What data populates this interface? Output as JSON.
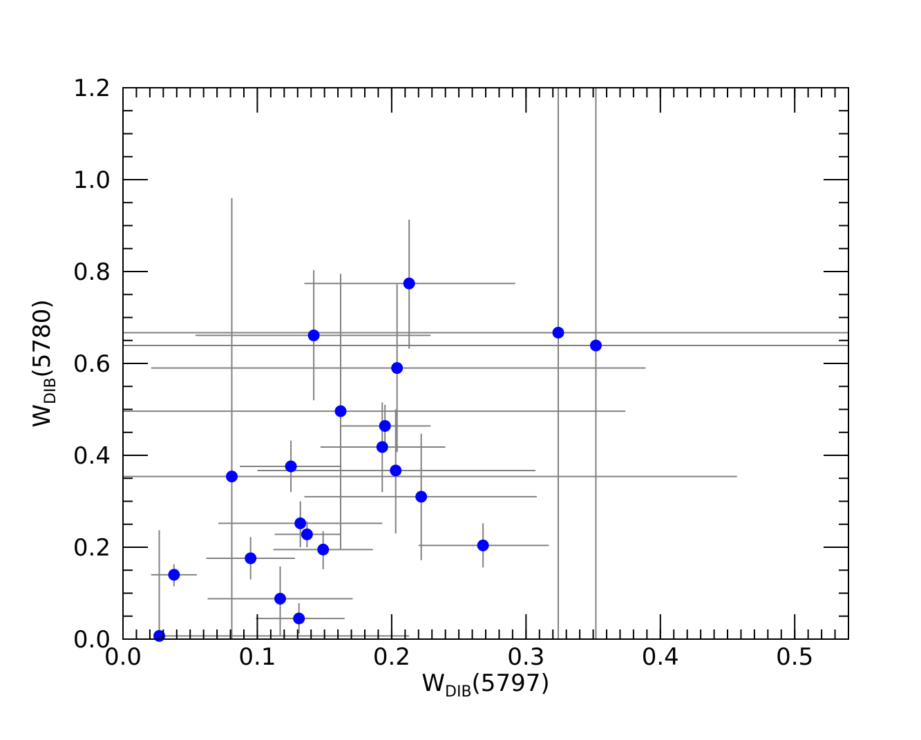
{
  "chart_data": {
    "type": "scatter",
    "xlabel": {
      "main": "W",
      "sub": "DIB",
      "tail": "(5797)"
    },
    "ylabel": {
      "main": "W",
      "sub": "DIB",
      "tail": "(5780)"
    },
    "xlim": [
      0,
      0.54
    ],
    "ylim": [
      0,
      1.2
    ],
    "x_ticks": [
      0.0,
      0.1,
      0.2,
      0.3,
      0.4,
      0.5
    ],
    "x_tick_labels": [
      "0.0",
      "0.1",
      "0.2",
      "0.3",
      "0.4",
      "0.5"
    ],
    "y_ticks": [
      0.0,
      0.2,
      0.4,
      0.6,
      0.8,
      1.0,
      1.2
    ],
    "y_tick_labels": [
      "0.0",
      "0.2",
      "0.4",
      "0.6",
      "0.8",
      "1.0",
      "1.2"
    ],
    "x_minor_step": 0.01,
    "y_minor_step": 0.05,
    "marker_color": "#0000ff",
    "errorbar_color": "#808080",
    "points": [
      {
        "x": 0.027,
        "y": 0.007,
        "xerr": [
          0.027,
          0.213
        ],
        "yerr": [
          0.007,
          0.237
        ]
      },
      {
        "x": 0.038,
        "y": 0.14,
        "xerr": [
          0.021,
          0.055
        ],
        "yerr": [
          0.115,
          0.163
        ]
      },
      {
        "x": 0.081,
        "y": 0.354,
        "xerr": [
          0.0,
          0.457
        ],
        "yerr": [
          0.0,
          0.96
        ]
      },
      {
        "x": 0.095,
        "y": 0.176,
        "xerr": [
          0.062,
          0.128
        ],
        "yerr": [
          0.13,
          0.222
        ]
      },
      {
        "x": 0.117,
        "y": 0.088,
        "xerr": [
          0.063,
          0.171
        ],
        "yerr": [
          0.008,
          0.158
        ]
      },
      {
        "x": 0.125,
        "y": 0.376,
        "xerr": [
          0.087,
          0.162
        ],
        "yerr": [
          0.32,
          0.432
        ]
      },
      {
        "x": 0.131,
        "y": 0.045,
        "xerr": [
          0.099,
          0.165
        ],
        "yerr": [
          0.012,
          0.078
        ]
      },
      {
        "x": 0.132,
        "y": 0.252,
        "xerr": [
          0.071,
          0.193
        ],
        "yerr": [
          0.2,
          0.3
        ]
      },
      {
        "x": 0.137,
        "y": 0.228,
        "xerr": [
          0.113,
          0.162
        ],
        "yerr": [
          0.2,
          0.256
        ]
      },
      {
        "x": 0.142,
        "y": 0.661,
        "xerr": [
          0.054,
          0.229
        ],
        "yerr": [
          0.52,
          0.803
        ]
      },
      {
        "x": 0.149,
        "y": 0.195,
        "xerr": [
          0.112,
          0.186
        ],
        "yerr": [
          0.152,
          0.235
        ]
      },
      {
        "x": 0.162,
        "y": 0.496,
        "xerr": [
          0.0,
          0.374
        ],
        "yerr": [
          0.195,
          0.795
        ]
      },
      {
        "x": 0.193,
        "y": 0.418,
        "xerr": [
          0.147,
          0.24
        ],
        "yerr": [
          0.32,
          0.515
        ]
      },
      {
        "x": 0.195,
        "y": 0.464,
        "xerr": [
          0.162,
          0.229
        ],
        "yerr": [
          0.415,
          0.51
        ]
      },
      {
        "x": 0.203,
        "y": 0.367,
        "xerr": [
          0.1,
          0.307
        ],
        "yerr": [
          0.23,
          0.5
        ]
      },
      {
        "x": 0.204,
        "y": 0.59,
        "xerr": [
          0.021,
          0.389
        ],
        "yerr": [
          0.407,
          0.772
        ]
      },
      {
        "x": 0.213,
        "y": 0.774,
        "xerr": [
          0.135,
          0.292
        ],
        "yerr": [
          0.632,
          0.913
        ]
      },
      {
        "x": 0.222,
        "y": 0.31,
        "xerr": [
          0.135,
          0.308
        ],
        "yerr": [
          0.172,
          0.447
        ]
      },
      {
        "x": 0.268,
        "y": 0.204,
        "xerr": [
          0.22,
          0.317
        ],
        "yerr": [
          0.156,
          0.252
        ]
      },
      {
        "x": 0.324,
        "y": 0.667,
        "xerr": [
          0.0,
          0.54
        ],
        "yerr": [
          0.0,
          1.2
        ]
      },
      {
        "x": 0.352,
        "y": 0.639,
        "xerr": [
          0.0,
          0.54
        ],
        "yerr": [
          0.0,
          1.2
        ]
      }
    ]
  }
}
